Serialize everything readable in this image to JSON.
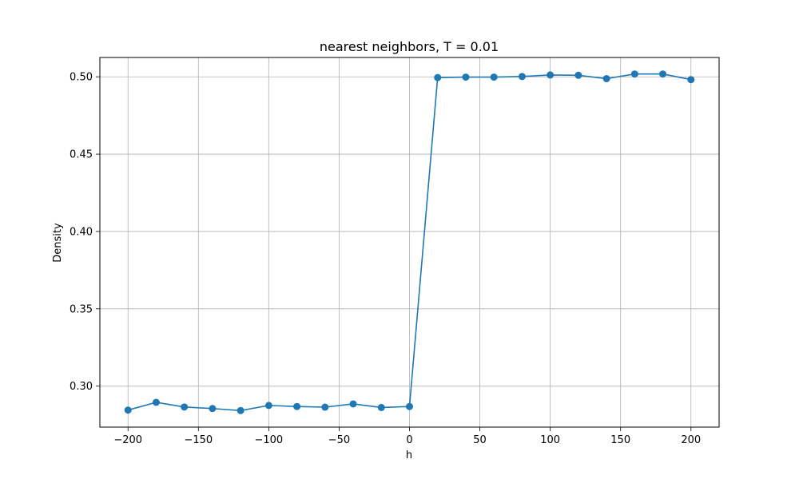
{
  "chart_data": {
    "type": "line",
    "title": "nearest neighbors, T = 0.01",
    "xlabel": "h",
    "ylabel": "Density",
    "xlim": [
      -220,
      220
    ],
    "ylim": [
      0.2735,
      0.5125
    ],
    "xticks": [
      -200,
      -150,
      -100,
      -50,
      0,
      50,
      100,
      150,
      200
    ],
    "xtick_labels": [
      "−200",
      "−150",
      "−100",
      "−50",
      "0",
      "50",
      "100",
      "150",
      "200"
    ],
    "yticks": [
      0.3,
      0.35,
      0.4,
      0.45,
      0.5
    ],
    "ytick_labels": [
      "0.30",
      "0.35",
      "0.40",
      "0.45",
      "0.50"
    ],
    "grid": true,
    "legend": "none",
    "series": [
      {
        "color": "#1f77b4",
        "marker": "circle",
        "x": [
          -200,
          -180,
          -160,
          -140,
          -120,
          -100,
          -80,
          -60,
          -40,
          -20,
          0,
          20,
          40,
          60,
          80,
          100,
          120,
          140,
          160,
          180,
          200
        ],
        "y": [
          0.2845,
          0.2895,
          0.2865,
          0.2855,
          0.2842,
          0.2875,
          0.2868,
          0.2864,
          0.2885,
          0.2862,
          0.2868,
          0.4995,
          0.4998,
          0.4998,
          0.5002,
          0.5012,
          0.501,
          0.4988,
          0.5018,
          0.5018,
          0.4982
        ]
      }
    ]
  }
}
